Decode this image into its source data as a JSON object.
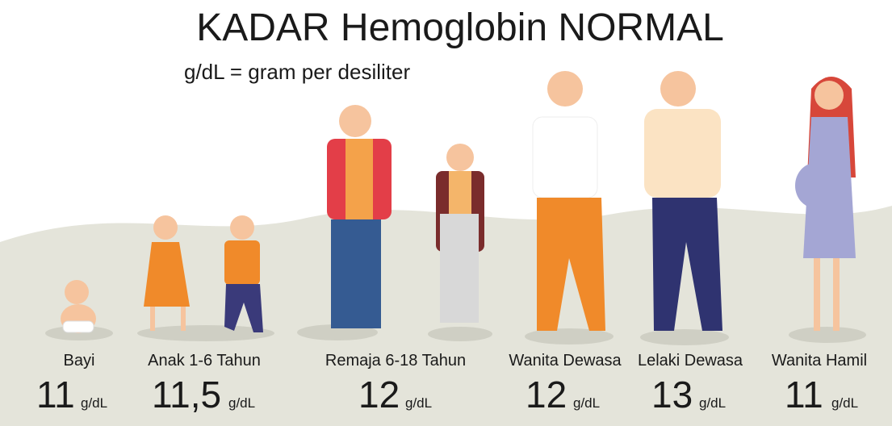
{
  "header": {
    "title": "KADAR Hemoglobin NORMAL",
    "subtitle": "g/dL = gram per desiliter"
  },
  "groups": [
    {
      "label": "Bayi",
      "value": "11",
      "unit": "g/dL"
    },
    {
      "label": "Anak 1-6 Tahun",
      "value": "11,5",
      "unit": "g/dL"
    },
    {
      "label": "Remaja 6-18 Tahun",
      "value": "12",
      "unit": "g/dL"
    },
    {
      "label": "Wanita Dewasa",
      "value": "12",
      "unit": "g/dL"
    },
    {
      "label": "Lelaki Dewasa",
      "value": "13",
      "unit": "g/dL"
    },
    {
      "label": "Wanita Hamil",
      "value": "11",
      "unit": "g/dL"
    }
  ]
}
